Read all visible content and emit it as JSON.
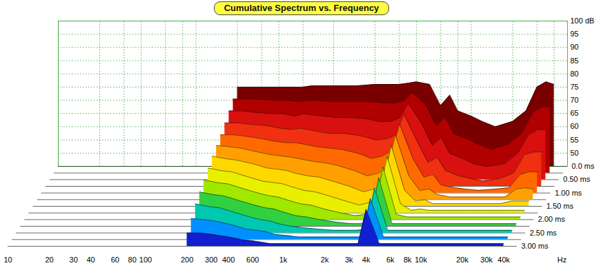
{
  "chart_data": {
    "type": "waterfall",
    "title": "Cumulative Spectrum vs. Frequency",
    "x_label": "Hz",
    "log": "x",
    "grid": true,
    "xlim": [
      10,
      50000
    ],
    "xticks": [
      10,
      20,
      30,
      40,
      60,
      80,
      100,
      200,
      300,
      400,
      600,
      {
        "value": 1000,
        "label": "1k"
      },
      {
        "value": 2000,
        "label": "2k"
      },
      {
        "value": 3000,
        "label": "3k"
      },
      {
        "value": 4000,
        "label": "4k"
      },
      {
        "value": 6000,
        "label": "6k"
      },
      {
        "value": 8000,
        "label": "8k"
      },
      {
        "value": 10000,
        "label": "10k"
      },
      {
        "value": 20000,
        "label": "20k"
      },
      {
        "value": 30000,
        "label": "30k"
      },
      {
        "value": 40000,
        "label": "40k"
      }
    ],
    "ylim": [
      45,
      100
    ],
    "yticks": [
      {
        "value": 100,
        "label": "100 dB"
      },
      95,
      90,
      85,
      80,
      75,
      70,
      65,
      60,
      55,
      50
    ],
    "zlim": [
      0,
      3
    ],
    "zticks": [
      {
        "value": 0,
        "label": "0.0 ms"
      },
      {
        "value": 0.5,
        "label": "0.50 ms"
      },
      {
        "value": 1,
        "label": "1.00 ms"
      },
      {
        "value": 1.5,
        "label": "1.50 ms"
      },
      {
        "value": 2,
        "label": "2.00 ms"
      },
      {
        "value": 2.5,
        "label": "2.50 ms"
      },
      {
        "value": 3,
        "label": "3.00 ms"
      }
    ],
    "x": [
      200,
      250,
      300,
      400,
      500,
      600,
      700,
      800,
      1000,
      1200,
      1500,
      2000,
      2500,
      3000,
      3500,
      4000,
      5000,
      6000,
      7000,
      8000,
      10000,
      12000,
      15000,
      20000,
      25000,
      30000,
      35000,
      40000
    ],
    "series": [
      {
        "time": 0,
        "color": "#7a0000",
        "values": [
          75,
          75,
          75,
          75,
          75,
          75,
          75.5,
          75.5,
          75.5,
          75.5,
          75.5,
          76,
          76,
          76,
          76.5,
          77,
          76,
          68,
          72,
          66,
          64,
          62,
          60,
          62,
          66,
          75,
          77,
          76
        ]
      },
      {
        "time": 0.25,
        "color": "#b00000",
        "values": [
          73,
          73,
          73,
          72.5,
          72.5,
          72,
          72.5,
          72.5,
          72,
          72,
          72,
          72,
          71.5,
          71.5,
          72.5,
          75.5,
          71,
          63,
          66,
          60,
          58,
          56,
          54,
          56,
          60,
          68,
          70,
          70
        ]
      },
      {
        "time": 0.5,
        "color": "#d81010",
        "values": [
          71,
          71,
          70.5,
          70,
          70,
          69,
          70,
          69.5,
          69,
          68.5,
          68.5,
          68,
          67,
          67,
          68.5,
          74,
          66.5,
          58,
          61,
          55,
          53,
          51,
          50,
          51,
          55,
          62,
          64,
          64
        ]
      },
      {
        "time": 0.75,
        "color": "#f03010",
        "values": [
          69,
          69,
          68.5,
          68,
          67,
          66.5,
          67,
          66.5,
          65.5,
          65,
          65,
          64,
          62.5,
          63,
          64.5,
          72.5,
          62,
          54,
          56,
          51,
          49,
          48,
          47,
          48,
          50,
          57,
          58,
          58
        ]
      },
      {
        "time": 1,
        "color": "#ff6a00",
        "values": [
          67,
          67,
          66.5,
          65.5,
          64.5,
          64,
          64,
          63.5,
          62.5,
          62,
          61.5,
          60,
          58,
          59,
          61,
          71,
          58,
          51,
          52,
          48,
          47,
          46.5,
          46,
          46.5,
          47,
          52,
          53,
          53
        ]
      },
      {
        "time": 1.25,
        "color": "#ffa000",
        "values": [
          65.5,
          65,
          64.5,
          63,
          62,
          61.5,
          61,
          60.5,
          59.5,
          59,
          58,
          56,
          54,
          55,
          57.5,
          69.5,
          54,
          48.5,
          49,
          47,
          46,
          46,
          46,
          46,
          46,
          49,
          49.5,
          49
        ]
      },
      {
        "time": 1.5,
        "color": "#ffd800",
        "values": [
          64,
          63,
          62.5,
          61,
          59.5,
          59,
          58.5,
          57.5,
          56.5,
          56,
          54.5,
          52.5,
          50.5,
          51.5,
          54,
          68,
          51,
          47,
          47.5,
          46,
          46,
          46,
          46,
          46,
          46,
          47,
          47,
          47
        ]
      },
      {
        "time": 1.75,
        "color": "#e8f000",
        "values": [
          62,
          61,
          60.5,
          58.5,
          57,
          56.5,
          56,
          55,
          53.5,
          53,
          51.5,
          49.5,
          48,
          49,
          51,
          66.5,
          48.5,
          46,
          46.5,
          46,
          46,
          46,
          46,
          46,
          46,
          46,
          46,
          46
        ]
      },
      {
        "time": 2,
        "color": "#a0e800",
        "values": [
          60,
          59,
          58.5,
          56.5,
          55,
          54,
          53.5,
          52.5,
          51,
          50.5,
          49,
          47.5,
          46.5,
          47,
          49,
          65,
          47,
          46,
          46,
          46,
          46,
          46,
          46,
          46,
          46,
          46,
          46,
          46
        ]
      },
      {
        "time": 2.25,
        "color": "#30d040",
        "values": [
          58,
          57,
          56.5,
          54.5,
          53,
          52,
          51.5,
          50.5,
          49,
          48.5,
          47.5,
          46.5,
          46,
          46,
          47.5,
          63.5,
          46,
          46,
          46,
          46,
          46,
          46,
          46,
          46,
          46,
          46,
          46,
          46
        ]
      },
      {
        "time": 2.5,
        "color": "#00c8b0",
        "values": [
          56,
          55,
          54.5,
          52.5,
          51,
          50,
          49.5,
          48.5,
          47.5,
          47,
          46.5,
          46,
          46,
          46,
          46.5,
          62,
          46,
          46,
          46,
          46,
          46,
          46,
          46,
          46,
          46,
          46,
          46,
          46
        ]
      },
      {
        "time": 2.75,
        "color": "#0090ff",
        "values": [
          53,
          52.5,
          52,
          50.5,
          49,
          48.5,
          48,
          47,
          46.5,
          46,
          46,
          46,
          46,
          46,
          46,
          60.5,
          46,
          46,
          46,
          46,
          46,
          46,
          46,
          46,
          46,
          46,
          46,
          46
        ]
      },
      {
        "time": 3,
        "color": "#1020d0",
        "values": [
          50,
          50,
          49.5,
          48.5,
          47.5,
          47,
          46.5,
          46,
          46,
          46,
          46,
          46,
          46,
          46,
          46,
          59,
          46,
          46,
          46,
          46,
          46,
          46,
          46,
          46,
          46,
          46,
          46,
          46
        ]
      }
    ]
  }
}
